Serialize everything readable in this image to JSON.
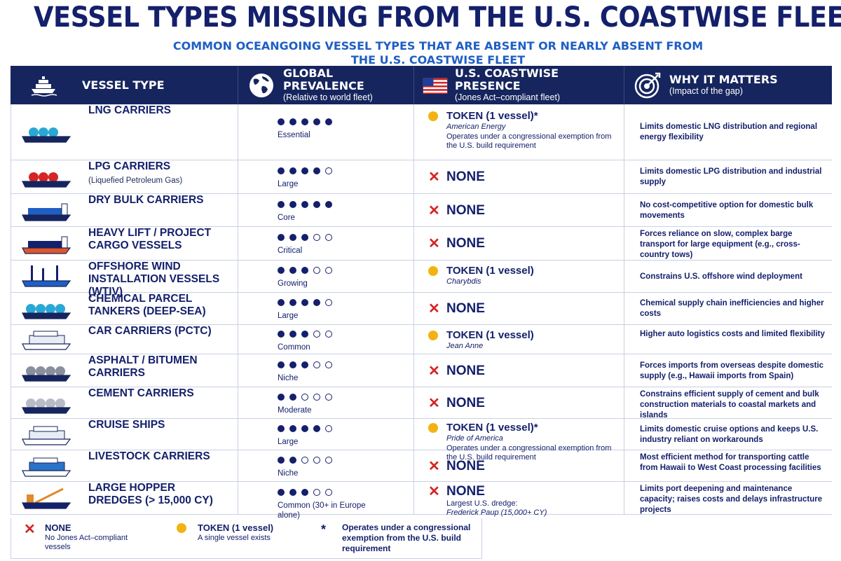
{
  "title": "VESSEL TYPES MISSING FROM THE U.S. COASTWISE FLEET",
  "subtitle": "COMMON OCEANGOING VESSEL TYPES THAT ARE ABSENT OR NEARLY ABSENT FROM THE U.S. COASTWISE FLEET",
  "colors": {
    "navy": "#16255e",
    "red": "#d62424",
    "yellow": "#f2b312",
    "blue": "#1f5fc4"
  },
  "header": {
    "col1": {
      "title": "VESSEL TYPE",
      "sub": "",
      "icon": "ship-icon"
    },
    "col2": {
      "title": "GLOBAL PREVALENCE",
      "sub": "(Relative to world fleet)",
      "icon": "globe-icon"
    },
    "col3": {
      "title": "U.S. COASTWISE PRESENCE",
      "sub": "(Jones Act–compliant fleet)",
      "icon": "us-flag-icon"
    },
    "col4": {
      "title": "WHY IT MATTERS",
      "sub": "(Impact of the gap)",
      "icon": "target-icon"
    }
  },
  "rows": [
    {
      "name": "LNG CARRIERS",
      "small": "",
      "icon": "lng-carrier-icon",
      "dots": 5,
      "prevalence": "Essential",
      "status": "token",
      "presence": "TOKEN (1 vessel)*",
      "vessel": "American Energy",
      "note": "Operates under a congressional exemption from the U.S. build requirement",
      "why": "Limits domestic LNG distribution and regional energy flexibility"
    },
    {
      "name": "LPG CARRIERS",
      "small": "(Liquefied Petroleum Gas)",
      "icon": "lpg-carrier-icon",
      "dots": 4,
      "prevalence": "Large",
      "status": "none",
      "presence": "NONE",
      "vessel": "",
      "note": "",
      "why": "Limits domestic LPG distribution and industrial supply"
    },
    {
      "name": "DRY BULK CARRIERS",
      "small": "",
      "icon": "bulk-carrier-icon",
      "dots": 5,
      "prevalence": "Core",
      "status": "none",
      "presence": "NONE",
      "vessel": "",
      "note": "",
      "why": "No cost-competitive option for domestic bulk movements"
    },
    {
      "name": "HEAVY LIFT / PROJECT CARGO VESSELS",
      "small": "",
      "icon": "heavy-lift-icon",
      "dots": 3,
      "prevalence": "Critical",
      "status": "none",
      "presence": "NONE",
      "vessel": "",
      "note": "",
      "why": "Forces reliance on slow, complex barge transport for large equipment (e.g., cross-country tows)"
    },
    {
      "name": "OFFSHORE WIND INSTALLATION VESSELS (WTIV)",
      "small": "",
      "icon": "wtiv-icon",
      "dots": 3,
      "prevalence": "Growing",
      "status": "token",
      "presence": "TOKEN (1 vessel)",
      "vessel": "Charybdis",
      "note": "",
      "why": "Constrains U.S. offshore wind deployment"
    },
    {
      "name": "CHEMICAL PARCEL TANKERS (DEEP-SEA)",
      "small": "",
      "icon": "chemical-tanker-icon",
      "dots": 4,
      "prevalence": "Large",
      "status": "none",
      "presence": "NONE",
      "vessel": "",
      "note": "",
      "why": "Chemical supply chain inefficiencies and higher costs"
    },
    {
      "name": "CAR CARRIERS (PCTC)",
      "small": "",
      "icon": "car-carrier-icon",
      "dots": 3,
      "prevalence": "Common",
      "status": "token",
      "presence": "TOKEN (1 vessel)",
      "vessel": "Jean Anne",
      "note": "",
      "why": "Higher auto logistics costs and limited flexibility"
    },
    {
      "name": "ASPHALT / BITUMEN CARRIERS",
      "small": "",
      "icon": "asphalt-carrier-icon",
      "dots": 3,
      "prevalence": "Niche",
      "status": "none",
      "presence": "NONE",
      "vessel": "",
      "note": "",
      "why": "Forces imports from overseas despite domestic supply (e.g., Hawaii imports from Spain)"
    },
    {
      "name": "CEMENT CARRIERS",
      "small": "",
      "icon": "cement-carrier-icon",
      "dots": 2,
      "prevalence": "Moderate",
      "status": "none",
      "presence": "NONE",
      "vessel": "",
      "note": "",
      "why": "Constrains efficient supply of cement and bulk construction materials to coastal markets and islands"
    },
    {
      "name": "CRUISE SHIPS",
      "small": "",
      "icon": "cruise-ship-icon",
      "dots": 4,
      "prevalence": "Large",
      "status": "token",
      "presence": "TOKEN (1 vessel)*",
      "vessel": "Pride of America",
      "note": "Operates under a congressional exemption from the U.S. build requirement",
      "why": "Limits domestic cruise options and keeps U.S. industry reliant on workarounds"
    },
    {
      "name": "LIVESTOCK CARRIERS",
      "small": "",
      "icon": "livestock-carrier-icon",
      "dots": 2,
      "prevalence": "Niche",
      "status": "none",
      "presence": "NONE",
      "vessel": "",
      "note": "",
      "why": "Most efficient method for transporting cattle from Hawaii to West Coast processing facilities"
    },
    {
      "name": "LARGE HOPPER DREDGES (> 15,000 CY)",
      "small": "",
      "icon": "hopper-dredge-icon",
      "dots": 3,
      "prevalence": "Common (30+ in Europe alone)",
      "status": "none",
      "presence": "NONE",
      "vessel": "Frederick Paup (15,000+ CY)",
      "note": "Largest U.S. dredge:",
      "why": "Limits port deepening and maintenance capacity; raises costs and delays infrastructure projects"
    }
  ],
  "legend": {
    "none_title": "NONE",
    "none_desc": "No Jones Act–compliant vessels",
    "token_title": "TOKEN (1 vessel)",
    "token_desc": "A single vessel exists",
    "star": "*",
    "star_desc": "Operates under a congressional exemption from the U.S. build requirement"
  }
}
